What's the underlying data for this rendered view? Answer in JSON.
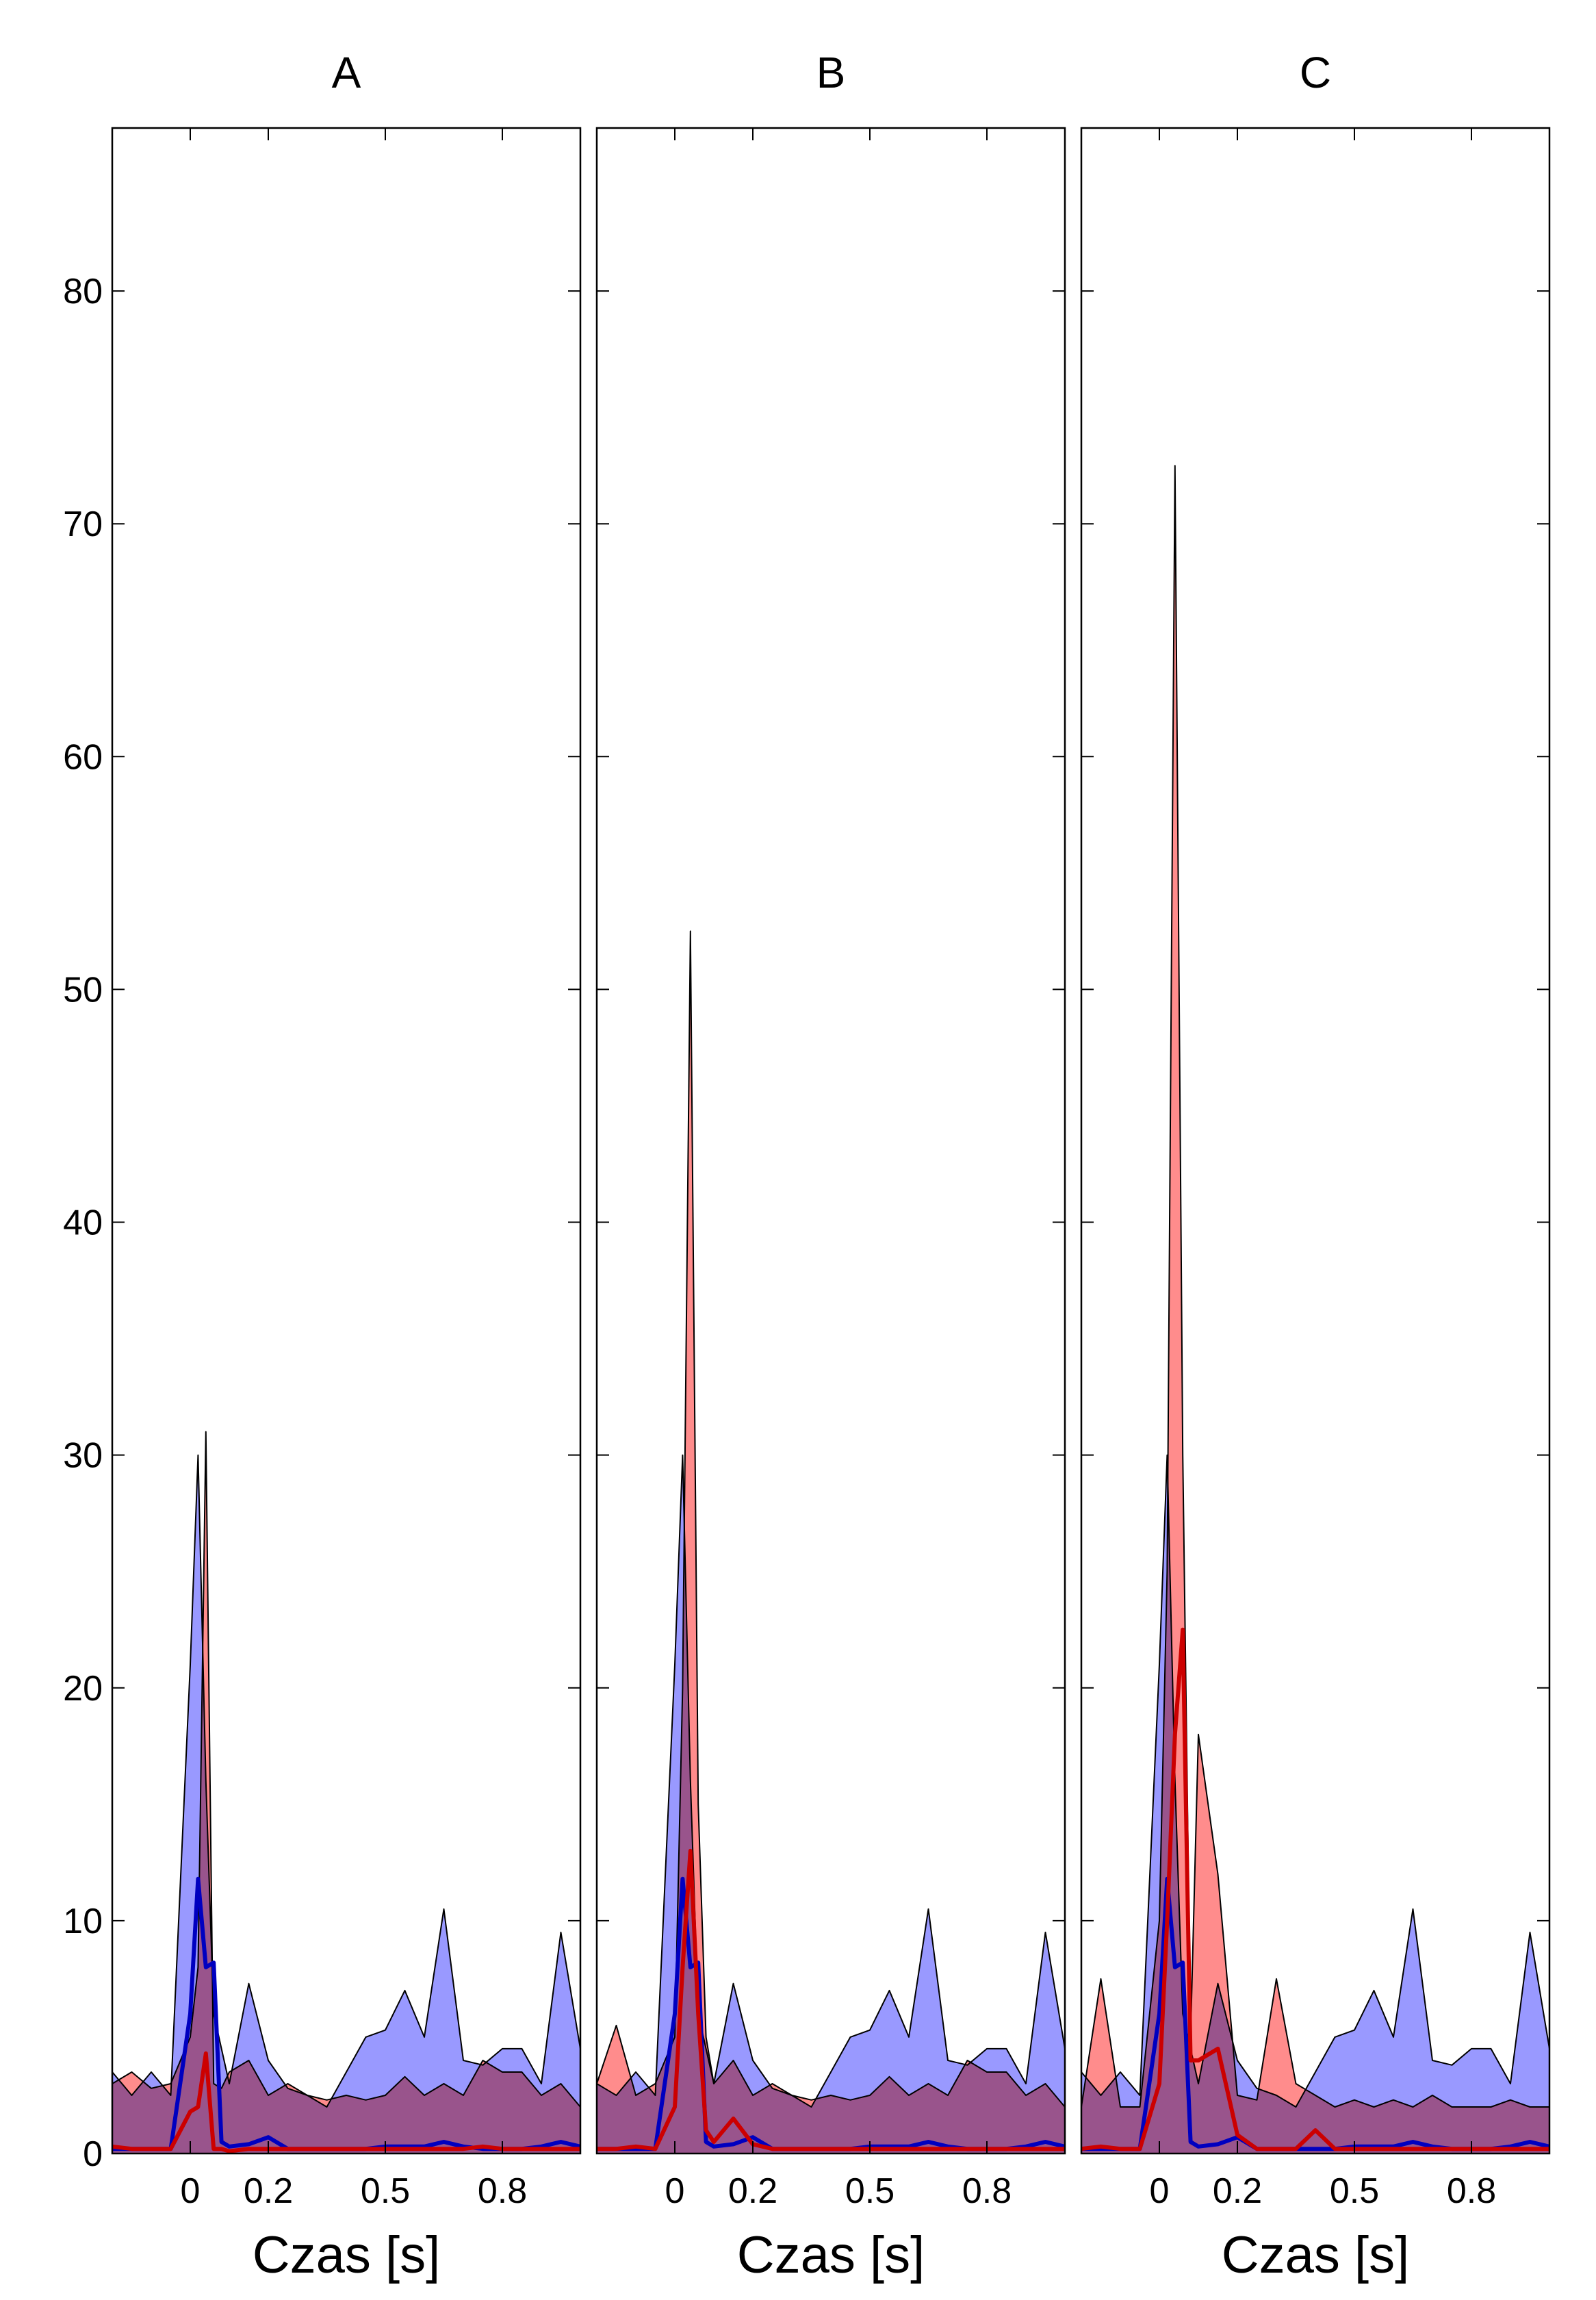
{
  "chart_data": [
    {
      "type": "area",
      "title": "A",
      "xlabel": "Czas [s]",
      "ylabel": "",
      "xlim": [
        -0.2,
        1.0
      ],
      "ylim": [
        0,
        87
      ],
      "xticks": [
        0,
        0.2,
        0.5,
        0.8
      ],
      "xtick_labels": [
        "0",
        "0.2",
        "0.5",
        "0.8"
      ],
      "yticks": [
        0,
        10,
        20,
        30,
        40,
        50,
        60,
        70,
        80
      ],
      "ytick_labels": [
        "0",
        "10",
        "20",
        "30",
        "40",
        "50",
        "60",
        "70",
        "80"
      ],
      "colors": {
        "blue": "#0000c0",
        "red": "#cc0000",
        "blue_band": "#7777ff",
        "red_band": "#ff6666",
        "band_edge": "#000000"
      },
      "x": [
        -0.2,
        -0.15,
        -0.1,
        -0.05,
        0.0,
        0.02,
        0.04,
        0.06,
        0.08,
        0.1,
        0.15,
        0.2,
        0.25,
        0.3,
        0.35,
        0.4,
        0.45,
        0.5,
        0.55,
        0.6,
        0.65,
        0.7,
        0.75,
        0.8,
        0.85,
        0.9,
        0.95,
        1.0
      ],
      "series": [
        {
          "color": "blue",
          "mean": [
            0.2,
            0.2,
            0.2,
            0.2,
            6.0,
            11.8,
            8.0,
            8.2,
            0.5,
            0.3,
            0.4,
            0.7,
            0.2,
            0.2,
            0.2,
            0.2,
            0.2,
            0.3,
            0.3,
            0.3,
            0.5,
            0.3,
            0.2,
            0.2,
            0.2,
            0.3,
            0.5,
            0.3
          ],
          "upper": [
            3.5,
            2.5,
            3.5,
            2.5,
            21.0,
            30.0,
            16.0,
            6.0,
            4.5,
            3.0,
            7.3,
            4.0,
            2.8,
            2.5,
            2.0,
            3.5,
            5.0,
            5.3,
            7.0,
            5.0,
            10.5,
            4.0,
            3.8,
            4.5,
            4.5,
            3.0,
            9.5,
            4.5
          ],
          "lower": [
            0,
            0,
            0,
            0,
            0,
            0,
            0,
            0,
            0,
            0,
            0,
            0,
            0,
            0,
            0,
            0,
            0,
            0,
            0,
            0,
            0,
            0,
            0,
            0,
            0,
            0,
            0,
            0
          ]
        },
        {
          "color": "red",
          "mean": [
            0.3,
            0.2,
            0.2,
            0.2,
            1.8,
            2.0,
            4.3,
            0.2,
            0.2,
            0.1,
            0.2,
            0.2,
            0.2,
            0.2,
            0.2,
            0.2,
            0.2,
            0.2,
            0.2,
            0.2,
            0.2,
            0.2,
            0.3,
            0.2,
            0.2,
            0.2,
            0.2,
            0.2
          ],
          "upper": [
            3.0,
            3.5,
            2.8,
            3.0,
            5.0,
            8.0,
            31.0,
            3.0,
            2.8,
            3.5,
            4.0,
            2.5,
            3.0,
            2.5,
            2.3,
            2.5,
            2.3,
            2.5,
            3.3,
            2.5,
            3.0,
            2.5,
            4.0,
            3.5,
            3.5,
            2.5,
            3.0,
            2.0
          ],
          "lower": [
            0,
            0,
            0,
            0,
            0,
            0,
            0,
            0,
            0,
            0,
            0,
            0,
            0,
            0,
            0,
            0,
            0,
            0,
            0,
            0,
            0,
            0,
            0,
            0,
            0,
            0,
            0,
            0
          ]
        }
      ]
    },
    {
      "type": "area",
      "title": "B",
      "xlabel": "Czas [s]",
      "ylabel": "",
      "xlim": [
        -0.2,
        1.0
      ],
      "ylim": [
        0,
        87
      ],
      "xticks": [
        0,
        0.2,
        0.5,
        0.8
      ],
      "xtick_labels": [
        "0",
        "0.2",
        "0.5",
        "0.8"
      ],
      "yticks": [
        0,
        10,
        20,
        30,
        40,
        50,
        60,
        70,
        80
      ],
      "ytick_labels": [
        "",
        "",
        "",
        "",
        "",
        "",
        "",
        "",
        ""
      ],
      "colors": {
        "blue": "#0000c0",
        "red": "#cc0000",
        "blue_band": "#7777ff",
        "red_band": "#ff6666",
        "band_edge": "#000000"
      },
      "x": [
        -0.2,
        -0.15,
        -0.1,
        -0.05,
        0.0,
        0.02,
        0.04,
        0.06,
        0.08,
        0.1,
        0.15,
        0.2,
        0.25,
        0.3,
        0.35,
        0.4,
        0.45,
        0.5,
        0.55,
        0.6,
        0.65,
        0.7,
        0.75,
        0.8,
        0.85,
        0.9,
        0.95,
        1.0
      ],
      "series": [
        {
          "color": "blue",
          "mean": [
            0.2,
            0.2,
            0.2,
            0.2,
            6.0,
            11.8,
            8.0,
            8.2,
            0.5,
            0.3,
            0.4,
            0.7,
            0.2,
            0.2,
            0.2,
            0.2,
            0.2,
            0.3,
            0.3,
            0.3,
            0.5,
            0.3,
            0.2,
            0.2,
            0.2,
            0.3,
            0.5,
            0.3
          ],
          "upper": [
            3.0,
            2.5,
            3.5,
            2.5,
            21.0,
            30.0,
            16.0,
            6.0,
            4.5,
            3.0,
            7.3,
            4.0,
            2.8,
            2.5,
            2.0,
            3.5,
            5.0,
            5.3,
            7.0,
            5.0,
            10.5,
            4.0,
            3.8,
            4.5,
            4.5,
            3.0,
            9.5,
            4.5
          ],
          "lower": [
            0,
            0,
            0,
            0,
            0,
            0,
            0,
            0,
            0,
            0,
            0,
            0,
            0,
            0,
            0,
            0,
            0,
            0,
            0,
            0,
            0,
            0,
            0,
            0,
            0,
            0,
            0,
            0
          ]
        },
        {
          "color": "red",
          "mean": [
            0.2,
            0.2,
            0.3,
            0.2,
            2.0,
            8.0,
            13.0,
            6.0,
            1.0,
            0.5,
            1.5,
            0.4,
            0.2,
            0.2,
            0.2,
            0.2,
            0.2,
            0.2,
            0.2,
            0.2,
            0.2,
            0.2,
            0.2,
            0.2,
            0.2,
            0.2,
            0.2,
            0.2
          ],
          "upper": [
            3.0,
            5.5,
            2.5,
            3.0,
            5.0,
            20.0,
            52.5,
            15.0,
            5.0,
            3.0,
            4.0,
            2.5,
            3.0,
            2.5,
            2.3,
            2.5,
            2.3,
            2.5,
            3.3,
            2.5,
            3.0,
            2.5,
            4.0,
            3.5,
            3.5,
            2.5,
            3.0,
            2.0
          ],
          "lower": [
            0,
            0,
            0,
            0,
            0,
            0,
            0,
            0,
            0,
            0,
            0,
            0,
            0,
            0,
            0,
            0,
            0,
            0,
            0,
            0,
            0,
            0,
            0,
            0,
            0,
            0,
            0,
            0
          ]
        }
      ]
    },
    {
      "type": "area",
      "title": "C",
      "xlabel": "Czas [s]",
      "ylabel": "",
      "xlim": [
        -0.2,
        1.0
      ],
      "ylim": [
        0,
        87
      ],
      "xticks": [
        0,
        0.2,
        0.5,
        0.8
      ],
      "xtick_labels": [
        "0",
        "0.2",
        "0.5",
        "0.8"
      ],
      "yticks": [
        0,
        10,
        20,
        30,
        40,
        50,
        60,
        70,
        80
      ],
      "ytick_labels": [
        "",
        "",
        "",
        "",
        "",
        "",
        "",
        "",
        ""
      ],
      "colors": {
        "blue": "#0000c0",
        "red": "#cc0000",
        "blue_band": "#7777ff",
        "red_band": "#ff6666",
        "band_edge": "#000000"
      },
      "x": [
        -0.2,
        -0.15,
        -0.1,
        -0.05,
        0.0,
        0.02,
        0.04,
        0.06,
        0.08,
        0.1,
        0.15,
        0.2,
        0.25,
        0.3,
        0.35,
        0.4,
        0.45,
        0.5,
        0.55,
        0.6,
        0.65,
        0.7,
        0.75,
        0.8,
        0.85,
        0.9,
        0.95,
        1.0
      ],
      "series": [
        {
          "color": "blue",
          "mean": [
            0.2,
            0.2,
            0.2,
            0.2,
            6.0,
            11.8,
            8.0,
            8.2,
            0.5,
            0.3,
            0.4,
            0.7,
            0.2,
            0.2,
            0.2,
            0.2,
            0.2,
            0.3,
            0.3,
            0.3,
            0.5,
            0.3,
            0.2,
            0.2,
            0.2,
            0.3,
            0.5,
            0.3
          ],
          "upper": [
            3.5,
            2.5,
            3.5,
            2.5,
            21.0,
            30.0,
            16.0,
            6.0,
            4.5,
            3.0,
            7.3,
            4.0,
            2.8,
            2.5,
            2.0,
            3.5,
            5.0,
            5.3,
            7.0,
            5.0,
            10.5,
            4.0,
            3.8,
            4.5,
            4.5,
            3.0,
            9.5,
            4.5
          ],
          "lower": [
            0,
            0,
            0,
            0,
            0,
            0,
            0,
            0,
            0,
            0,
            0,
            0,
            0,
            0,
            0,
            0,
            0,
            0,
            0,
            0,
            0,
            0,
            0,
            0,
            0,
            0,
            0,
            0
          ]
        },
        {
          "color": "red",
          "mean": [
            0.2,
            0.3,
            0.2,
            0.2,
            3.0,
            10.0,
            18.0,
            22.5,
            4.0,
            4.0,
            4.5,
            0.8,
            0.2,
            0.2,
            0.2,
            1.0,
            0.2,
            0.2,
            0.2,
            0.2,
            0.2,
            0.2,
            0.2,
            0.2,
            0.2,
            0.2,
            0.2,
            0.2
          ],
          "upper": [
            2.0,
            7.5,
            2.0,
            2.0,
            10.0,
            25.0,
            72.5,
            30.0,
            5.0,
            18.0,
            12.0,
            2.5,
            2.3,
            7.5,
            3.0,
            2.5,
            2.0,
            2.3,
            2.0,
            2.3,
            2.0,
            2.5,
            2.0,
            2.0,
            2.0,
            2.3,
            2.0,
            2.0
          ],
          "lower": [
            0,
            0,
            0,
            0,
            0,
            0,
            0,
            0,
            0,
            0,
            0,
            0,
            0,
            0,
            0,
            0,
            0,
            0,
            0,
            0,
            0,
            0,
            0,
            0,
            0,
            0,
            0,
            0
          ]
        }
      ]
    }
  ]
}
